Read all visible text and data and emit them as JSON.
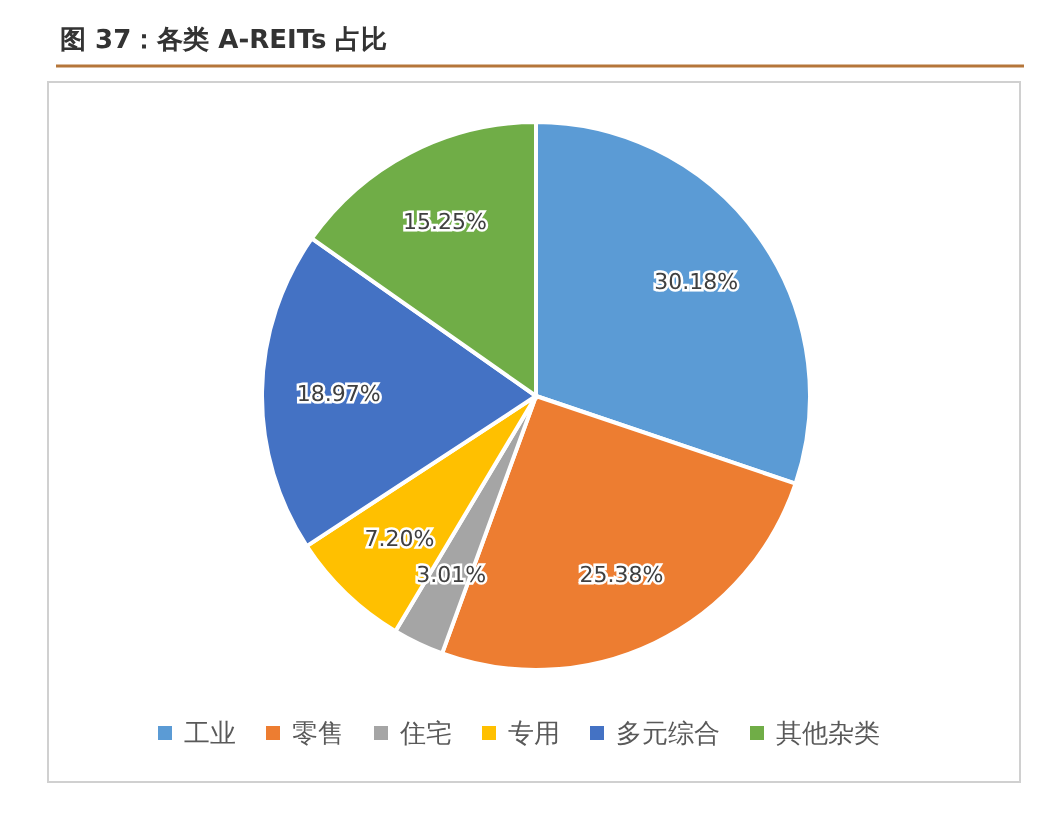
{
  "chart_data": {
    "type": "pie",
    "title": "图 37：各类 A-REITs 占比",
    "categories": [
      "工业",
      "零售",
      "住宅",
      "专用",
      "多元综合",
      "其他杂类"
    ],
    "values": [
      30.18,
      25.38,
      3.01,
      7.2,
      18.97,
      15.25
    ],
    "value_labels": [
      "30.18%",
      "25.38%",
      "3.01%",
      "7.20%",
      "18.97%",
      "15.25%"
    ],
    "colors": [
      "#5b9bd5",
      "#ed7d31",
      "#a5a5a5",
      "#ffc000",
      "#4472c4",
      "#70ad47"
    ],
    "legend": "bottom"
  }
}
